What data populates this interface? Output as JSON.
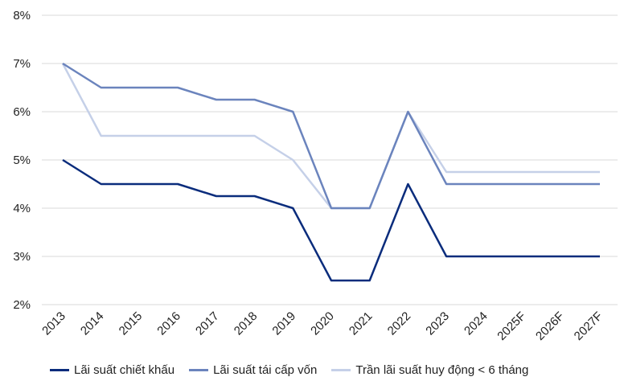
{
  "chart_data": {
    "type": "line",
    "categories": [
      "2013",
      "2014",
      "2015",
      "2016",
      "2017",
      "2018",
      "2019",
      "2020",
      "2021",
      "2022",
      "2023",
      "2024",
      "2025F",
      "2026F",
      "2027F"
    ],
    "ylim": [
      2,
      8
    ],
    "y_ticks": [
      "2%",
      "3%",
      "4%",
      "5%",
      "6%",
      "7%",
      "8%"
    ],
    "grid": "horizontal",
    "legend_position": "bottom",
    "series": [
      {
        "name": "Lãi suất chiết khấu",
        "color": "#0a2c7c",
        "values": [
          5,
          4.5,
          4.5,
          4.5,
          4.25,
          4.25,
          4,
          2.5,
          2.5,
          4.5,
          3,
          3,
          3,
          3,
          3
        ]
      },
      {
        "name": "Lãi suất tái cấp vốn",
        "color": "#6b84bd",
        "values": [
          7,
          6.5,
          6.5,
          6.5,
          6.25,
          6.25,
          6,
          4,
          4,
          6,
          4.5,
          4.5,
          4.5,
          4.5,
          4.5
        ]
      },
      {
        "name": "Trần lãi suất huy động < 6 tháng",
        "color": "#c5d0e8",
        "values": [
          7,
          5.5,
          5.5,
          5.5,
          5.5,
          5.5,
          5,
          4,
          4,
          6,
          4.75,
          4.75,
          4.75,
          4.75,
          4.75
        ]
      }
    ]
  }
}
